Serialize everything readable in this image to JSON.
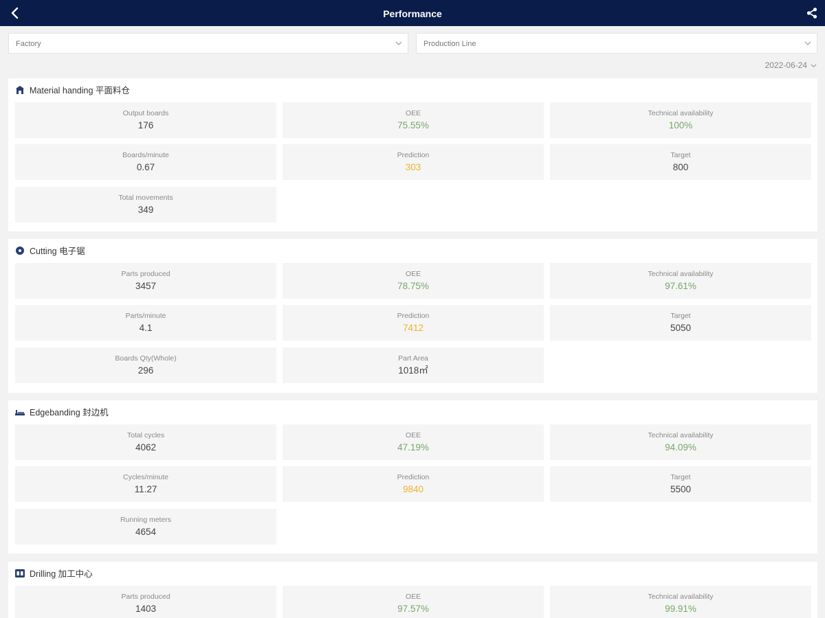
{
  "header": {
    "title": "Performance",
    "back_icon": "chevron-left-icon",
    "share_icon": "share-icon"
  },
  "filters": {
    "factory": {
      "value": "Factory"
    },
    "production_line": {
      "value": "Production Line"
    },
    "date": "2022-06-24"
  },
  "colors": {
    "header_bg": "#0a1c4a",
    "good": "#7aa56a",
    "prediction": "#f0b030"
  },
  "sections": [
    {
      "name": "Material handing 平面料仓",
      "icon": "warehouse-icon",
      "tiles": [
        {
          "label": "Output boards",
          "value": "176"
        },
        {
          "label": "OEE",
          "value": "75.55%"
        },
        {
          "label": "Technical availability",
          "value": "100%"
        },
        {
          "label": "Boards/minute",
          "value": "0.67"
        },
        {
          "label": "Prediction",
          "value": "303"
        },
        {
          "label": "Target",
          "value": "800"
        },
        {
          "label": "Total movements",
          "value": "349"
        }
      ]
    },
    {
      "name": "Cutting 电子锯",
      "icon": "saw-blade-icon",
      "tiles": [
        {
          "label": "Parts produced",
          "value": "3457"
        },
        {
          "label": "OEE",
          "value": "78.75%"
        },
        {
          "label": "Technical availability",
          "value": "97.61%"
        },
        {
          "label": "Parts/minute",
          "value": "4.1"
        },
        {
          "label": "Prediction",
          "value": "7412"
        },
        {
          "label": "Target",
          "value": "5050"
        },
        {
          "label": "Boards Qty(Whole)",
          "value": "296"
        },
        {
          "label": "Part Area",
          "value": "1018㎡"
        }
      ]
    },
    {
      "name": "Edgebanding 封边机",
      "icon": "edgebander-icon",
      "tiles": [
        {
          "label": "Total cycles",
          "value": "4062"
        },
        {
          "label": "OEE",
          "value": "47.19%"
        },
        {
          "label": "Technical availability",
          "value": "94.09%"
        },
        {
          "label": "Cycles/minute",
          "value": "11.27"
        },
        {
          "label": "Prediction",
          "value": "9840"
        },
        {
          "label": "Target",
          "value": "5500"
        },
        {
          "label": "Running meters",
          "value": "4654"
        }
      ]
    },
    {
      "name": "Drilling 加工中心",
      "icon": "machining-center-icon",
      "tiles": [
        {
          "label": "Parts produced",
          "value": "1403"
        },
        {
          "label": "OEE",
          "value": "97.57%"
        },
        {
          "label": "Technical availability",
          "value": "99.91%"
        }
      ]
    }
  ]
}
